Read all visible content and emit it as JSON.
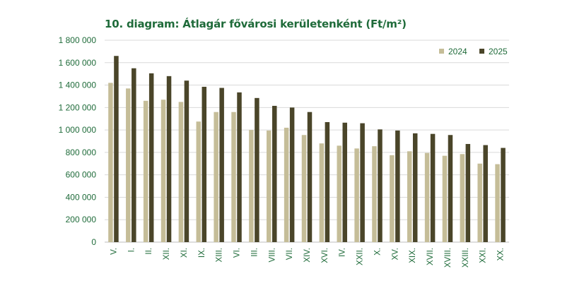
{
  "chart_data": {
    "type": "bar",
    "title": "10. diagram: Átlagár fővárosi kerületenként (Ft/m²)",
    "xlabel": "",
    "ylabel": "",
    "ylim": [
      0,
      1800000
    ],
    "yticks": [
      0,
      200000,
      400000,
      600000,
      800000,
      1000000,
      1200000,
      1400000,
      1600000,
      1800000
    ],
    "ytick_labels": [
      "0",
      "200 000",
      "400 000",
      "600 000",
      "800 000",
      "1 000 000",
      "1 200 000",
      "1 400 000",
      "1 600 000",
      "1 800 000"
    ],
    "grid": true,
    "legend_position": "top-right",
    "categories": [
      "V.",
      "I.",
      "II.",
      "XII.",
      "XI.",
      "IX.",
      "XIII.",
      "VI.",
      "III.",
      "VIII.",
      "VII.",
      "XIV.",
      "XVI.",
      "IV.",
      "XXII.",
      "X.",
      "XV.",
      "XIX.",
      "XVII.",
      "XVIII.",
      "XXIII.",
      "XXI.",
      "XX."
    ],
    "series": [
      {
        "name": "2024",
        "color": "#c5bd98",
        "values": [
          1420000,
          1370000,
          1260000,
          1270000,
          1250000,
          1075000,
          1160000,
          1160000,
          1000000,
          995000,
          1020000,
          955000,
          880000,
          860000,
          835000,
          855000,
          775000,
          810000,
          795000,
          770000,
          785000,
          700000,
          695000
        ]
      },
      {
        "name": "2025",
        "color": "#4a4529",
        "values": [
          1660000,
          1550000,
          1505000,
          1480000,
          1440000,
          1385000,
          1375000,
          1335000,
          1285000,
          1215000,
          1200000,
          1160000,
          1070000,
          1065000,
          1060000,
          1005000,
          995000,
          970000,
          965000,
          955000,
          875000,
          865000,
          840000
        ]
      }
    ]
  }
}
